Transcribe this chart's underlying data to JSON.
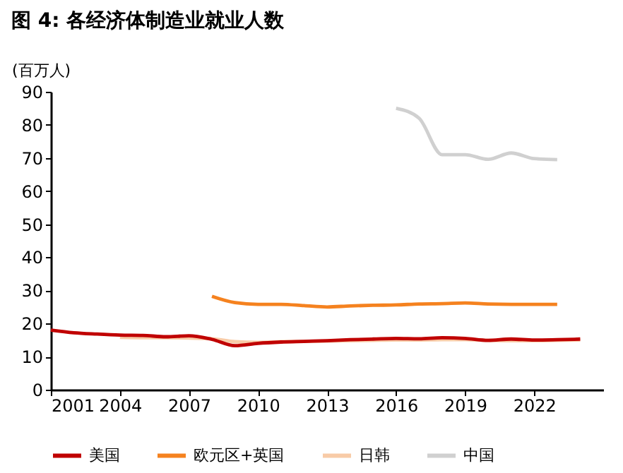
{
  "chart_data": {
    "type": "line",
    "title": "图 4: 各经济体制造业就业人数",
    "ylabel": "(百万人)",
    "xlim": [
      2001,
      2025
    ],
    "xticks": [
      2001,
      2004,
      2007,
      2010,
      2013,
      2016,
      2019,
      2022
    ],
    "ylim": [
      0,
      90
    ],
    "yticks": [
      0,
      10,
      20,
      30,
      40,
      50,
      60,
      70,
      80,
      90
    ],
    "grid": false,
    "legend": "bottom",
    "marker": "none",
    "line_style": "solid",
    "series": [
      {
        "name": "美国",
        "color": "#c00000",
        "x": [
          2001,
          2002,
          2003,
          2004,
          2005,
          2006,
          2007,
          2008,
          2009,
          2010,
          2011,
          2012,
          2013,
          2014,
          2015,
          2016,
          2017,
          2018,
          2019,
          2020,
          2021,
          2022,
          2023,
          2024
        ],
        "values": [
          18,
          17.2,
          16.8,
          16.5,
          16.4,
          16,
          16.3,
          15.2,
          13.3,
          14,
          14.4,
          14.6,
          14.8,
          15.1,
          15.3,
          15.5,
          15.4,
          15.7,
          15.5,
          14.9,
          15.3,
          15,
          15.1,
          15.3
        ]
      },
      {
        "name": "欧元区+英国",
        "color": "#f5821f",
        "x": [
          2008,
          2009,
          2010,
          2011,
          2012,
          2013,
          2014,
          2015,
          2016,
          2017,
          2018,
          2019,
          2020,
          2021,
          2022,
          2023
        ],
        "values": [
          28.2,
          26.3,
          25.8,
          25.8,
          25.4,
          25,
          25.3,
          25.5,
          25.6,
          25.9,
          26,
          26.2,
          25.9,
          25.8,
          25.8,
          25.8
        ]
      },
      {
        "name": "日韩",
        "color": "#f8cba7",
        "x": [
          2004,
          2005,
          2006,
          2007,
          2008,
          2009,
          2010,
          2011,
          2012,
          2013,
          2014,
          2015,
          2016,
          2017,
          2018,
          2019,
          2020,
          2021,
          2022,
          2023,
          2024
        ],
        "values": [
          15.8,
          15.7,
          15.7,
          15.6,
          15.4,
          14.5,
          14.3,
          14.5,
          14.6,
          14.7,
          14.8,
          14.9,
          15,
          15,
          15.1,
          15.1,
          14.9,
          14.8,
          14.8,
          14.9,
          15
        ]
      },
      {
        "name": "中国",
        "color": "#d0d0d0",
        "x": [
          2016,
          2017,
          2018,
          2019,
          2020,
          2021,
          2022,
          2023
        ],
        "values": [
          85,
          82,
          71,
          71,
          69.6,
          71.5,
          69.8,
          69.5
        ]
      }
    ]
  }
}
